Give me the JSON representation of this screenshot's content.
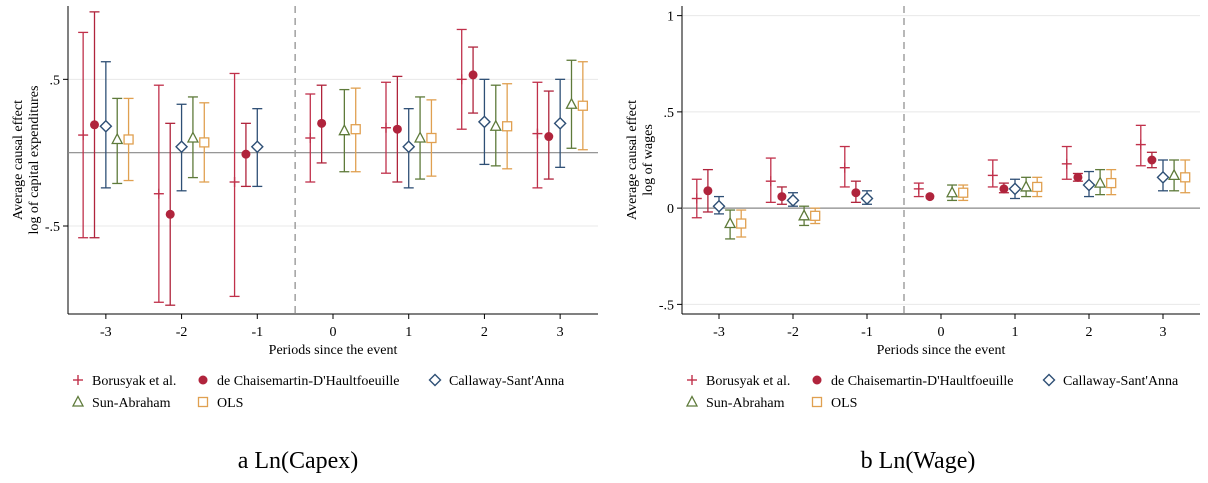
{
  "chart_data": [
    {
      "type": "scatter",
      "caption": "a Ln(Capex)",
      "ylabel_lines": [
        "Average causal effect",
        "log of capital expenditures"
      ],
      "xlabel": "Periods since the event",
      "x_ticks": [
        -3,
        -2,
        -1,
        0,
        1,
        2,
        3
      ],
      "y_ticks": [
        {
          "value": 0.5,
          "label": ".5"
        },
        {
          "value": -0.5,
          "label": "-.5"
        }
      ],
      "xlim": [
        -3.5,
        3.5
      ],
      "ylim": [
        -1.1,
        1.0
      ],
      "zero_line": 0,
      "event_line_x": -0.5,
      "series": [
        {
          "name": "Borusyak et al.",
          "color": "#c0304a",
          "marker": "plus",
          "offset": -0.3,
          "points": [
            {
              "x": -3,
              "y": 0.12,
              "lo": -0.58,
              "hi": 0.82
            },
            {
              "x": -2,
              "y": -0.28,
              "lo": -1.02,
              "hi": 0.46
            },
            {
              "x": -1,
              "y": -0.2,
              "lo": -0.98,
              "hi": 0.54
            },
            {
              "x": 0,
              "y": 0.1,
              "lo": -0.2,
              "hi": 0.4
            },
            {
              "x": 1,
              "y": 0.17,
              "lo": -0.14,
              "hi": 0.48
            },
            {
              "x": 2,
              "y": 0.5,
              "lo": 0.16,
              "hi": 0.84
            },
            {
              "x": 3,
              "y": 0.13,
              "lo": -0.24,
              "hi": 0.48
            }
          ]
        },
        {
          "name": "de Chaisemartin-D'Haultfoeuille",
          "color": "#b0243c",
          "marker": "circle",
          "offset": -0.15,
          "points": [
            {
              "x": -3,
              "y": 0.19,
              "lo": -0.58,
              "hi": 0.96
            },
            {
              "x": -2,
              "y": -0.42,
              "lo": -1.04,
              "hi": 0.2
            },
            {
              "x": -1,
              "y": -0.01,
              "lo": -0.23,
              "hi": 0.2
            },
            {
              "x": 0,
              "y": 0.2,
              "lo": -0.07,
              "hi": 0.46
            },
            {
              "x": 1,
              "y": 0.16,
              "lo": -0.2,
              "hi": 0.52
            },
            {
              "x": 2,
              "y": 0.53,
              "lo": 0.27,
              "hi": 0.72
            },
            {
              "x": 3,
              "y": 0.11,
              "lo": -0.18,
              "hi": 0.42
            }
          ]
        },
        {
          "name": "Callaway-Sant'Anna",
          "color": "#2e4f75",
          "marker": "diamond",
          "offset": 0,
          "points": [
            {
              "x": -3,
              "y": 0.18,
              "lo": -0.24,
              "hi": 0.62
            },
            {
              "x": -2,
              "y": 0.04,
              "lo": -0.26,
              "hi": 0.33
            },
            {
              "x": -1,
              "y": 0.04,
              "lo": -0.23,
              "hi": 0.3
            },
            {
              "x": 0,
              "y": null,
              "lo": null,
              "hi": null
            },
            {
              "x": 1,
              "y": 0.04,
              "lo": -0.24,
              "hi": 0.3
            },
            {
              "x": 2,
              "y": 0.21,
              "lo": -0.08,
              "hi": 0.5
            },
            {
              "x": 3,
              "y": 0.2,
              "lo": -0.1,
              "hi": 0.5
            }
          ]
        },
        {
          "name": "Sun-Abraham",
          "color": "#5e7a3a",
          "marker": "triangle",
          "offset": 0.15,
          "points": [
            {
              "x": -3,
              "y": 0.09,
              "lo": -0.21,
              "hi": 0.37
            },
            {
              "x": -2,
              "y": 0.1,
              "lo": -0.17,
              "hi": 0.38
            },
            {
              "x": -1,
              "y": null,
              "lo": null,
              "hi": null
            },
            {
              "x": 0,
              "y": 0.15,
              "lo": -0.13,
              "hi": 0.43
            },
            {
              "x": 1,
              "y": 0.1,
              "lo": -0.18,
              "hi": 0.38
            },
            {
              "x": 2,
              "y": 0.18,
              "lo": -0.09,
              "hi": 0.46
            },
            {
              "x": 3,
              "y": 0.33,
              "lo": 0.03,
              "hi": 0.63
            }
          ]
        },
        {
          "name": "OLS",
          "color": "#e0a050",
          "marker": "square",
          "offset": 0.3,
          "points": [
            {
              "x": -3,
              "y": 0.09,
              "lo": -0.19,
              "hi": 0.37
            },
            {
              "x": -2,
              "y": 0.07,
              "lo": -0.2,
              "hi": 0.34
            },
            {
              "x": -1,
              "y": null,
              "lo": null,
              "hi": null
            },
            {
              "x": 0,
              "y": 0.16,
              "lo": -0.13,
              "hi": 0.44
            },
            {
              "x": 1,
              "y": 0.1,
              "lo": -0.16,
              "hi": 0.36
            },
            {
              "x": 2,
              "y": 0.18,
              "lo": -0.11,
              "hi": 0.47
            },
            {
              "x": 3,
              "y": 0.32,
              "lo": 0.02,
              "hi": 0.62
            }
          ]
        }
      ]
    },
    {
      "type": "scatter",
      "caption": "b Ln(Wage)",
      "ylabel_lines": [
        "Average causal effect",
        "log of wages"
      ],
      "xlabel": "Periods since the event",
      "x_ticks": [
        -3,
        -2,
        -1,
        0,
        1,
        2,
        3
      ],
      "y_ticks": [
        {
          "value": 1,
          "label": "1"
        },
        {
          "value": 0.5,
          "label": ".5"
        },
        {
          "value": 0,
          "label": "0"
        },
        {
          "value": -0.5,
          "label": "-.5"
        }
      ],
      "xlim": [
        -3.5,
        3.5
      ],
      "ylim": [
        -0.55,
        1.05
      ],
      "zero_line": 0,
      "event_line_x": -0.5,
      "series": [
        {
          "name": "Borusyak et al.",
          "color": "#c0304a",
          "marker": "plus",
          "offset": -0.3,
          "points": [
            {
              "x": -3,
              "y": 0.05,
              "lo": -0.05,
              "hi": 0.15
            },
            {
              "x": -2,
              "y": 0.14,
              "lo": 0.03,
              "hi": 0.26
            },
            {
              "x": -1,
              "y": 0.21,
              "lo": 0.11,
              "hi": 0.32
            },
            {
              "x": 0,
              "y": 0.1,
              "lo": 0.06,
              "hi": 0.13
            },
            {
              "x": 1,
              "y": 0.17,
              "lo": 0.11,
              "hi": 0.25
            },
            {
              "x": 2,
              "y": 0.23,
              "lo": 0.15,
              "hi": 0.32
            },
            {
              "x": 3,
              "y": 0.33,
              "lo": 0.22,
              "hi": 0.43
            }
          ]
        },
        {
          "name": "de Chaisemartin-D'Haultfoeuille",
          "color": "#b0243c",
          "marker": "circle",
          "offset": -0.15,
          "points": [
            {
              "x": -3,
              "y": 0.09,
              "lo": -0.02,
              "hi": 0.2
            },
            {
              "x": -2,
              "y": 0.06,
              "lo": 0.02,
              "hi": 0.11
            },
            {
              "x": -1,
              "y": 0.08,
              "lo": 0.03,
              "hi": 0.14
            },
            {
              "x": 0,
              "y": 0.06,
              "lo": null,
              "hi": null
            },
            {
              "x": 1,
              "y": 0.1,
              "lo": 0.08,
              "hi": 0.13
            },
            {
              "x": 2,
              "y": 0.16,
              "lo": 0.14,
              "hi": 0.18
            },
            {
              "x": 3,
              "y": 0.25,
              "lo": 0.21,
              "hi": 0.29
            }
          ]
        },
        {
          "name": "Callaway-Sant'Anna",
          "color": "#2e4f75",
          "marker": "diamond",
          "offset": 0,
          "points": [
            {
              "x": -3,
              "y": 0.01,
              "lo": -0.03,
              "hi": 0.06
            },
            {
              "x": -2,
              "y": 0.04,
              "lo": 0.01,
              "hi": 0.08
            },
            {
              "x": -1,
              "y": 0.05,
              "lo": 0.02,
              "hi": 0.09
            },
            {
              "x": 0,
              "y": null,
              "lo": null,
              "hi": null
            },
            {
              "x": 1,
              "y": 0.1,
              "lo": 0.05,
              "hi": 0.15
            },
            {
              "x": 2,
              "y": 0.12,
              "lo": 0.06,
              "hi": 0.19
            },
            {
              "x": 3,
              "y": 0.16,
              "lo": 0.09,
              "hi": 0.25
            }
          ]
        },
        {
          "name": "Sun-Abraham",
          "color": "#5e7a3a",
          "marker": "triangle",
          "offset": 0.15,
          "points": [
            {
              "x": -3,
              "y": -0.08,
              "lo": -0.16,
              "hi": -0.01
            },
            {
              "x": -2,
              "y": -0.04,
              "lo": -0.09,
              "hi": 0.01
            },
            {
              "x": -1,
              "y": null,
              "lo": null,
              "hi": null
            },
            {
              "x": 0,
              "y": 0.08,
              "lo": 0.04,
              "hi": 0.12
            },
            {
              "x": 1,
              "y": 0.11,
              "lo": 0.06,
              "hi": 0.16
            },
            {
              "x": 2,
              "y": 0.13,
              "lo": 0.07,
              "hi": 0.2
            },
            {
              "x": 3,
              "y": 0.17,
              "lo": 0.09,
              "hi": 0.25
            }
          ]
        },
        {
          "name": "OLS",
          "color": "#e0a050",
          "marker": "square",
          "offset": 0.3,
          "points": [
            {
              "x": -3,
              "y": -0.08,
              "lo": -0.15,
              "hi": -0.01
            },
            {
              "x": -2,
              "y": -0.04,
              "lo": -0.08,
              "hi": 0.0
            },
            {
              "x": -1,
              "y": null,
              "lo": null,
              "hi": null
            },
            {
              "x": 0,
              "y": 0.08,
              "lo": 0.04,
              "hi": 0.12
            },
            {
              "x": 1,
              "y": 0.11,
              "lo": 0.06,
              "hi": 0.16
            },
            {
              "x": 2,
              "y": 0.13,
              "lo": 0.07,
              "hi": 0.2
            },
            {
              "x": 3,
              "y": 0.16,
              "lo": 0.08,
              "hi": 0.25
            }
          ]
        }
      ]
    }
  ]
}
